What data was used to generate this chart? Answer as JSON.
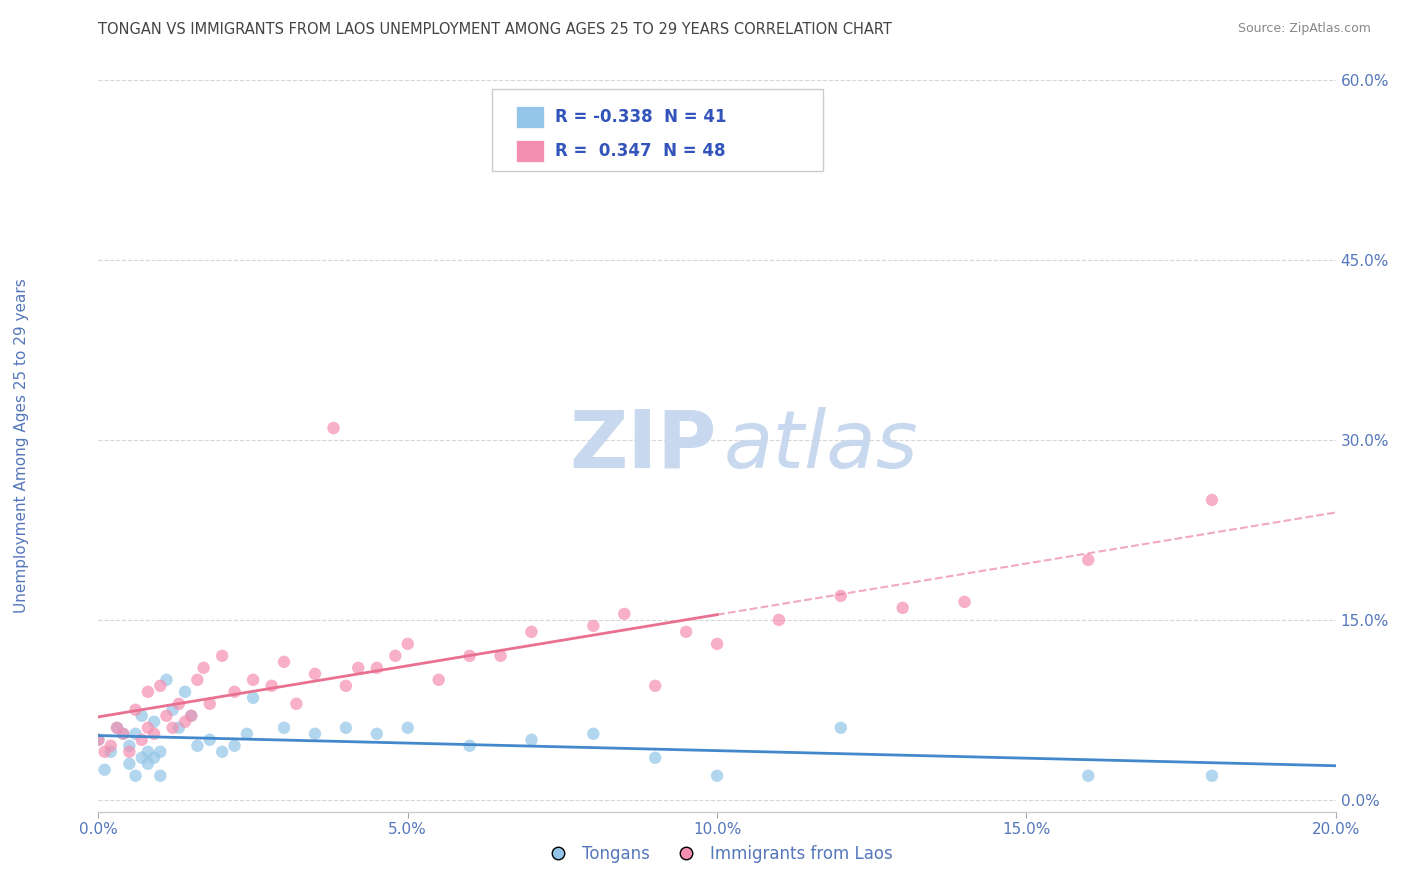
{
  "title": "TONGAN VS IMMIGRANTS FROM LAOS UNEMPLOYMENT AMONG AGES 25 TO 29 YEARS CORRELATION CHART",
  "source": "Source: ZipAtlas.com",
  "ylabel": "Unemployment Among Ages 25 to 29 years",
  "xlim": [
    0.0,
    0.2
  ],
  "ylim": [
    -0.01,
    0.6
  ],
  "xticks": [
    0.0,
    0.05,
    0.1,
    0.15,
    0.2
  ],
  "xtick_labels": [
    "0.0%",
    "5.0%",
    "10.0%",
    "15.0%",
    "20.0%"
  ],
  "yticks_right": [
    0.0,
    0.15,
    0.3,
    0.45,
    0.6
  ],
  "ytick_labels_right": [
    "0.0%",
    "15.0%",
    "30.0%",
    "45.0%",
    "60.0%"
  ],
  "series1_name": "Tongans",
  "series2_name": "Immigrants from Laos",
  "series1_color": "#92c5e8",
  "series2_color": "#f48fb1",
  "series1_trend_color": "#4488cc",
  "series2_trend_color": "#e87090",
  "background_color": "#ffffff",
  "grid_color": "#cccccc",
  "tick_label_color": "#5577bb",
  "watermark_zip_color": "#c8d8ee",
  "watermark_atlas_color": "#c8d8ee",
  "legend_box_color": "#f0f4f8",
  "legend_border_color": "#cccccc",
  "legend_text_color": "#3355bb",
  "legend_R1": "-0.338",
  "legend_N1": "41",
  "legend_R2": "0.347",
  "legend_N2": "48",
  "trend_split": 0.1,
  "tongan_x": [
    0.0,
    0.001,
    0.002,
    0.003,
    0.004,
    0.005,
    0.005,
    0.006,
    0.006,
    0.007,
    0.007,
    0.008,
    0.008,
    0.009,
    0.009,
    0.01,
    0.01,
    0.011,
    0.012,
    0.013,
    0.014,
    0.015,
    0.016,
    0.018,
    0.02,
    0.022,
    0.024,
    0.025,
    0.03,
    0.035,
    0.04,
    0.045,
    0.05,
    0.06,
    0.07,
    0.08,
    0.09,
    0.1,
    0.12,
    0.16,
    0.18
  ],
  "tongan_y": [
    0.05,
    0.025,
    0.04,
    0.06,
    0.055,
    0.045,
    0.03,
    0.02,
    0.055,
    0.035,
    0.07,
    0.03,
    0.04,
    0.035,
    0.065,
    0.04,
    0.02,
    0.1,
    0.075,
    0.06,
    0.09,
    0.07,
    0.045,
    0.05,
    0.04,
    0.045,
    0.055,
    0.085,
    0.06,
    0.055,
    0.06,
    0.055,
    0.06,
    0.045,
    0.05,
    0.055,
    0.035,
    0.02,
    0.06,
    0.02,
    0.02
  ],
  "laos_x": [
    0.0,
    0.001,
    0.002,
    0.003,
    0.004,
    0.005,
    0.006,
    0.007,
    0.008,
    0.008,
    0.009,
    0.01,
    0.011,
    0.012,
    0.013,
    0.014,
    0.015,
    0.016,
    0.017,
    0.018,
    0.02,
    0.022,
    0.025,
    0.028,
    0.03,
    0.032,
    0.035,
    0.038,
    0.04,
    0.042,
    0.045,
    0.048,
    0.05,
    0.055,
    0.06,
    0.065,
    0.07,
    0.08,
    0.085,
    0.09,
    0.095,
    0.1,
    0.11,
    0.12,
    0.13,
    0.14,
    0.16,
    0.18
  ],
  "laos_y": [
    0.05,
    0.04,
    0.045,
    0.06,
    0.055,
    0.04,
    0.075,
    0.05,
    0.09,
    0.06,
    0.055,
    0.095,
    0.07,
    0.06,
    0.08,
    0.065,
    0.07,
    0.1,
    0.11,
    0.08,
    0.12,
    0.09,
    0.1,
    0.095,
    0.115,
    0.08,
    0.105,
    0.31,
    0.095,
    0.11,
    0.11,
    0.12,
    0.13,
    0.1,
    0.12,
    0.12,
    0.14,
    0.145,
    0.155,
    0.095,
    0.14,
    0.13,
    0.15,
    0.17,
    0.16,
    0.165,
    0.2,
    0.25
  ]
}
